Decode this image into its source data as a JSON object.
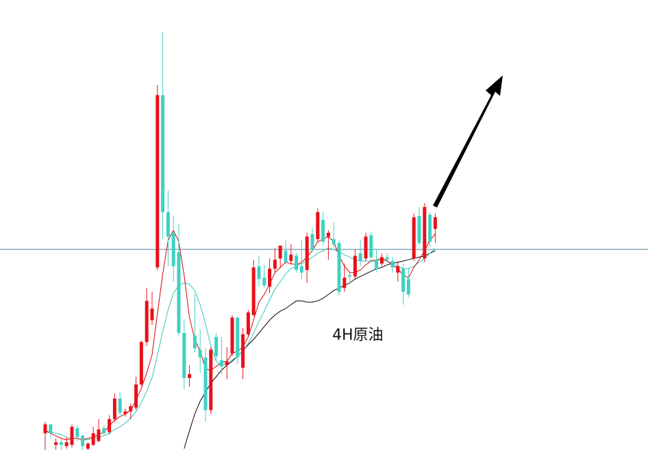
{
  "chart_data": {
    "type": "candlestick",
    "title": "4H原油",
    "price_line": 50.6,
    "ylim": [
      35,
      70
    ],
    "grid": false,
    "colors": {
      "up": "#e8101a",
      "down": "#3fd1c2",
      "ma_fast": "#d80000",
      "ma_mid": "#2cc6bb",
      "ma_slow": "#000000",
      "price_line": "#4d7f9e",
      "arrow": "#000000"
    },
    "candles": [
      {
        "o": 36.3,
        "h": 37.2,
        "l": 34.8,
        "c": 37.0
      },
      {
        "o": 37.0,
        "h": 37.0,
        "l": 35.9,
        "c": 36.3
      },
      {
        "o": 35.4,
        "h": 35.9,
        "l": 34.9,
        "c": 35.6
      },
      {
        "o": 35.6,
        "h": 35.9,
        "l": 34.9,
        "c": 35.4
      },
      {
        "o": 35.3,
        "h": 36.0,
        "l": 35.1,
        "c": 35.6
      },
      {
        "o": 35.4,
        "h": 37.0,
        "l": 35.2,
        "c": 36.8
      },
      {
        "o": 36.7,
        "h": 36.9,
        "l": 35.7,
        "c": 36.0
      },
      {
        "o": 36.1,
        "h": 36.2,
        "l": 34.8,
        "c": 35.3
      },
      {
        "o": 35.1,
        "h": 35.6,
        "l": 34.8,
        "c": 35.5
      },
      {
        "o": 35.4,
        "h": 36.8,
        "l": 35.3,
        "c": 36.3
      },
      {
        "o": 35.7,
        "h": 37.4,
        "l": 35.6,
        "c": 36.6
      },
      {
        "o": 36.7,
        "h": 36.9,
        "l": 36.1,
        "c": 36.3
      },
      {
        "o": 36.4,
        "h": 37.7,
        "l": 36.2,
        "c": 37.4
      },
      {
        "o": 37.4,
        "h": 39.4,
        "l": 37.2,
        "c": 39.0
      },
      {
        "o": 39.0,
        "h": 39.5,
        "l": 37.7,
        "c": 37.9
      },
      {
        "o": 37.8,
        "h": 38.2,
        "l": 37.6,
        "c": 38.0
      },
      {
        "o": 38.0,
        "h": 38.6,
        "l": 37.4,
        "c": 38.4
      },
      {
        "o": 38.3,
        "h": 40.7,
        "l": 38.1,
        "c": 40.1
      },
      {
        "o": 40.1,
        "h": 43.5,
        "l": 40.0,
        "c": 43.4
      },
      {
        "o": 43.4,
        "h": 47.6,
        "l": 43.1,
        "c": 46.6
      },
      {
        "o": 45.1,
        "h": 47.3,
        "l": 44.7,
        "c": 46.0
      },
      {
        "o": 49.2,
        "h": 63.4,
        "l": 49.0,
        "c": 62.6
      },
      {
        "o": 62.6,
        "h": 67.5,
        "l": 51.4,
        "c": 53.5
      },
      {
        "o": 53.5,
        "h": 55.2,
        "l": 49.3,
        "c": 51.6
      },
      {
        "o": 51.9,
        "h": 53.2,
        "l": 48.1,
        "c": 49.3
      },
      {
        "o": 50.4,
        "h": 52.6,
        "l": 43.9,
        "c": 44.1
      },
      {
        "o": 44.1,
        "h": 45.2,
        "l": 39.7,
        "c": 40.6
      },
      {
        "o": 40.6,
        "h": 41.6,
        "l": 39.9,
        "c": 40.9
      },
      {
        "o": 43.9,
        "h": 47.1,
        "l": 42.6,
        "c": 42.9
      },
      {
        "o": 42.8,
        "h": 44.4,
        "l": 41.0,
        "c": 42.2
      },
      {
        "o": 42.2,
        "h": 42.9,
        "l": 37.2,
        "c": 38.1
      },
      {
        "o": 38.1,
        "h": 43.0,
        "l": 37.8,
        "c": 42.8
      },
      {
        "o": 43.8,
        "h": 44.1,
        "l": 42.0,
        "c": 42.3
      },
      {
        "o": 42.0,
        "h": 43.8,
        "l": 40.9,
        "c": 41.5
      },
      {
        "o": 41.6,
        "h": 43.0,
        "l": 40.5,
        "c": 41.9
      },
      {
        "o": 42.5,
        "h": 45.5,
        "l": 42.3,
        "c": 45.3
      },
      {
        "o": 45.3,
        "h": 45.4,
        "l": 41.7,
        "c": 42.2
      },
      {
        "o": 41.4,
        "h": 44.5,
        "l": 40.5,
        "c": 44.0
      },
      {
        "o": 44.0,
        "h": 45.9,
        "l": 43.9,
        "c": 45.7
      },
      {
        "o": 45.5,
        "h": 49.8,
        "l": 45.4,
        "c": 49.2
      },
      {
        "o": 49.3,
        "h": 50.1,
        "l": 47.7,
        "c": 48.3
      },
      {
        "o": 48.4,
        "h": 49.4,
        "l": 47.6,
        "c": 47.8
      },
      {
        "o": 47.7,
        "h": 49.9,
        "l": 47.2,
        "c": 49.1
      },
      {
        "o": 49.1,
        "h": 50.7,
        "l": 48.8,
        "c": 49.8
      },
      {
        "o": 49.9,
        "h": 50.9,
        "l": 49.2,
        "c": 50.9
      },
      {
        "o": 50.5,
        "h": 51.3,
        "l": 49.5,
        "c": 49.6
      },
      {
        "o": 49.7,
        "h": 51.0,
        "l": 49.4,
        "c": 50.2
      },
      {
        "o": 50.1,
        "h": 50.3,
        "l": 48.8,
        "c": 49.0
      },
      {
        "o": 49.3,
        "h": 51.3,
        "l": 48.3,
        "c": 48.8
      },
      {
        "o": 49.0,
        "h": 51.9,
        "l": 48.0,
        "c": 51.6
      },
      {
        "o": 51.8,
        "h": 52.3,
        "l": 50.4,
        "c": 50.6
      },
      {
        "o": 51.4,
        "h": 53.8,
        "l": 51.2,
        "c": 53.5
      },
      {
        "o": 52.9,
        "h": 53.5,
        "l": 50.9,
        "c": 51.2
      },
      {
        "o": 51.6,
        "h": 52.1,
        "l": 49.8,
        "c": 51.9
      },
      {
        "o": 51.4,
        "h": 52.7,
        "l": 50.7,
        "c": 51.0
      },
      {
        "o": 51.1,
        "h": 51.3,
        "l": 47.0,
        "c": 47.3
      },
      {
        "o": 47.6,
        "h": 49.5,
        "l": 47.3,
        "c": 48.4
      },
      {
        "o": 48.6,
        "h": 48.8,
        "l": 47.9,
        "c": 48.5
      },
      {
        "o": 48.5,
        "h": 50.6,
        "l": 48.3,
        "c": 50.1
      },
      {
        "o": 50.3,
        "h": 51.3,
        "l": 49.3,
        "c": 49.7
      },
      {
        "o": 49.9,
        "h": 51.9,
        "l": 49.7,
        "c": 51.6
      },
      {
        "o": 51.7,
        "h": 52.0,
        "l": 49.6,
        "c": 50.0
      },
      {
        "o": 49.8,
        "h": 50.6,
        "l": 48.8,
        "c": 49.1
      },
      {
        "o": 49.5,
        "h": 50.3,
        "l": 49.3,
        "c": 50.0
      },
      {
        "o": 50.0,
        "h": 50.3,
        "l": 49.6,
        "c": 49.8
      },
      {
        "o": 49.7,
        "h": 50.0,
        "l": 48.8,
        "c": 49.2
      },
      {
        "o": 48.8,
        "h": 49.7,
        "l": 48.1,
        "c": 49.3
      },
      {
        "o": 49.1,
        "h": 49.5,
        "l": 46.3,
        "c": 47.3
      },
      {
        "o": 48.3,
        "h": 49.2,
        "l": 46.9,
        "c": 47.1
      },
      {
        "o": 49.9,
        "h": 53.4,
        "l": 49.7,
        "c": 53.1
      },
      {
        "o": 53.2,
        "h": 53.9,
        "l": 50.9,
        "c": 51.1
      },
      {
        "o": 49.9,
        "h": 54.2,
        "l": 49.6,
        "c": 53.9
      },
      {
        "o": 53.3,
        "h": 53.5,
        "l": 50.8,
        "c": 51.2
      },
      {
        "o": 52.2,
        "h": 53.4,
        "l": 51.1,
        "c": 53.1
      }
    ],
    "ma_fast": [
      36.5,
      36.3,
      36.1,
      35.9,
      35.8,
      35.9,
      35.9,
      35.8,
      35.9,
      36.0,
      36.2,
      36.4,
      36.9,
      37.3,
      37.6,
      37.8,
      38.1,
      38.9,
      39.8,
      41.0,
      42.4,
      45.6,
      48.7,
      51.3,
      52.1,
      51.2,
      48.6,
      45.3,
      43.6,
      42.7,
      41.3,
      41.2,
      41.5,
      41.8,
      41.9,
      42.5,
      42.7,
      43.0,
      43.8,
      45.1,
      46.5,
      47.1,
      47.9,
      48.8,
      49.2,
      49.6,
      49.5,
      49.4,
      49.6,
      50.0,
      50.5,
      51.2,
      51.4,
      51.6,
      51.2,
      50.1,
      49.3,
      48.8,
      48.8,
      49.0,
      49.4,
      49.7,
      49.8,
      49.9,
      49.7,
      49.4,
      49.1,
      48.6,
      48.4,
      49.2,
      49.8,
      50.5,
      51.3,
      51.8
    ],
    "ma_mid": [
      36.5,
      36.4,
      36.3,
      36.2,
      36.0,
      35.9,
      35.9,
      35.8,
      35.8,
      35.9,
      36.0,
      36.1,
      36.3,
      36.6,
      36.8,
      37.1,
      37.5,
      38.0,
      38.7,
      39.6,
      40.6,
      42.4,
      44.2,
      45.9,
      47.2,
      47.8,
      48.0,
      47.9,
      47.4,
      46.3,
      44.8,
      43.1,
      41.9,
      41.6,
      41.7,
      42.0,
      42.3,
      42.7,
      43.3,
      44.1,
      45.0,
      45.8,
      46.7,
      47.5,
      48.1,
      48.7,
      49.1,
      49.3,
      49.5,
      49.7,
      50.0,
      50.3,
      50.5,
      50.7,
      50.6,
      50.4,
      50.2,
      50.0,
      49.8,
      49.7,
      49.7,
      49.7,
      49.7,
      49.8,
      49.7,
      49.5,
      49.3,
      49.1,
      49.1,
      49.3,
      49.6,
      49.9,
      50.3,
      50.7
    ],
    "ma_slow": [
      null,
      null,
      null,
      null,
      null,
      null,
      null,
      null,
      null,
      null,
      null,
      null,
      null,
      null,
      null,
      null,
      null,
      null,
      null,
      null,
      null,
      null,
      null,
      null,
      null,
      null,
      35.1,
      36.5,
      37.8,
      38.8,
      39.5,
      40.2,
      40.7,
      41.2,
      41.6,
      41.9,
      42.3,
      42.7,
      43.2,
      43.6,
      44.1,
      44.6,
      45.1,
      45.5,
      45.8,
      46.0,
      46.3,
      46.6,
      46.6,
      46.5,
      46.5,
      46.6,
      46.8,
      47.1,
      47.4,
      47.6,
      47.8,
      48.0,
      48.3,
      48.5,
      48.7,
      48.9,
      49.1,
      49.2,
      49.4,
      49.5,
      49.6,
      49.7,
      49.8,
      49.9,
      50.0,
      50.1,
      50.3,
      50.5
    ]
  }
}
